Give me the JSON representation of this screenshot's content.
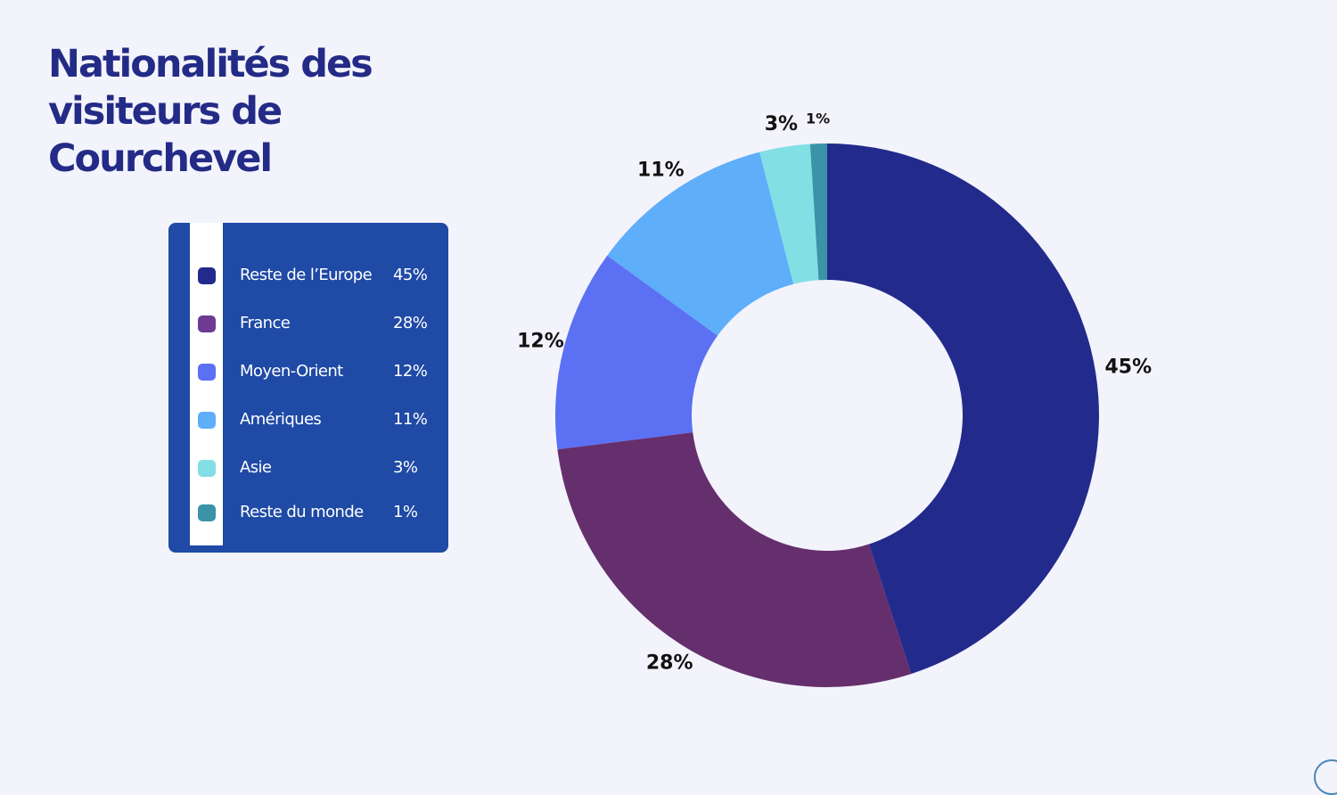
{
  "title": "Nationalités des visiteurs de Courchevel",
  "chart_data": {
    "type": "pie",
    "variant": "donut",
    "title": "Nationalités des visiteurs de Courchevel",
    "categories": [
      "Reste de l’Europe",
      "France",
      "Moyen-Orient",
      "Amériques",
      "Asie",
      "Reste du monde"
    ],
    "values": [
      45,
      28,
      12,
      11,
      3,
      1
    ],
    "value_labels": [
      "45%",
      "28%",
      "12%",
      "11%",
      "3%",
      "1%"
    ],
    "colors": [
      "#222b8b",
      "#652f6d",
      "#5b70f3",
      "#5eaefa",
      "#82dfe4",
      "#3a93a6"
    ],
    "legend_colors": [
      "#222b8b",
      "#6e3a93",
      "#5b70f3",
      "#5eaefa",
      "#82dfe4",
      "#3a93a6"
    ],
    "legend_placement": "left"
  }
}
